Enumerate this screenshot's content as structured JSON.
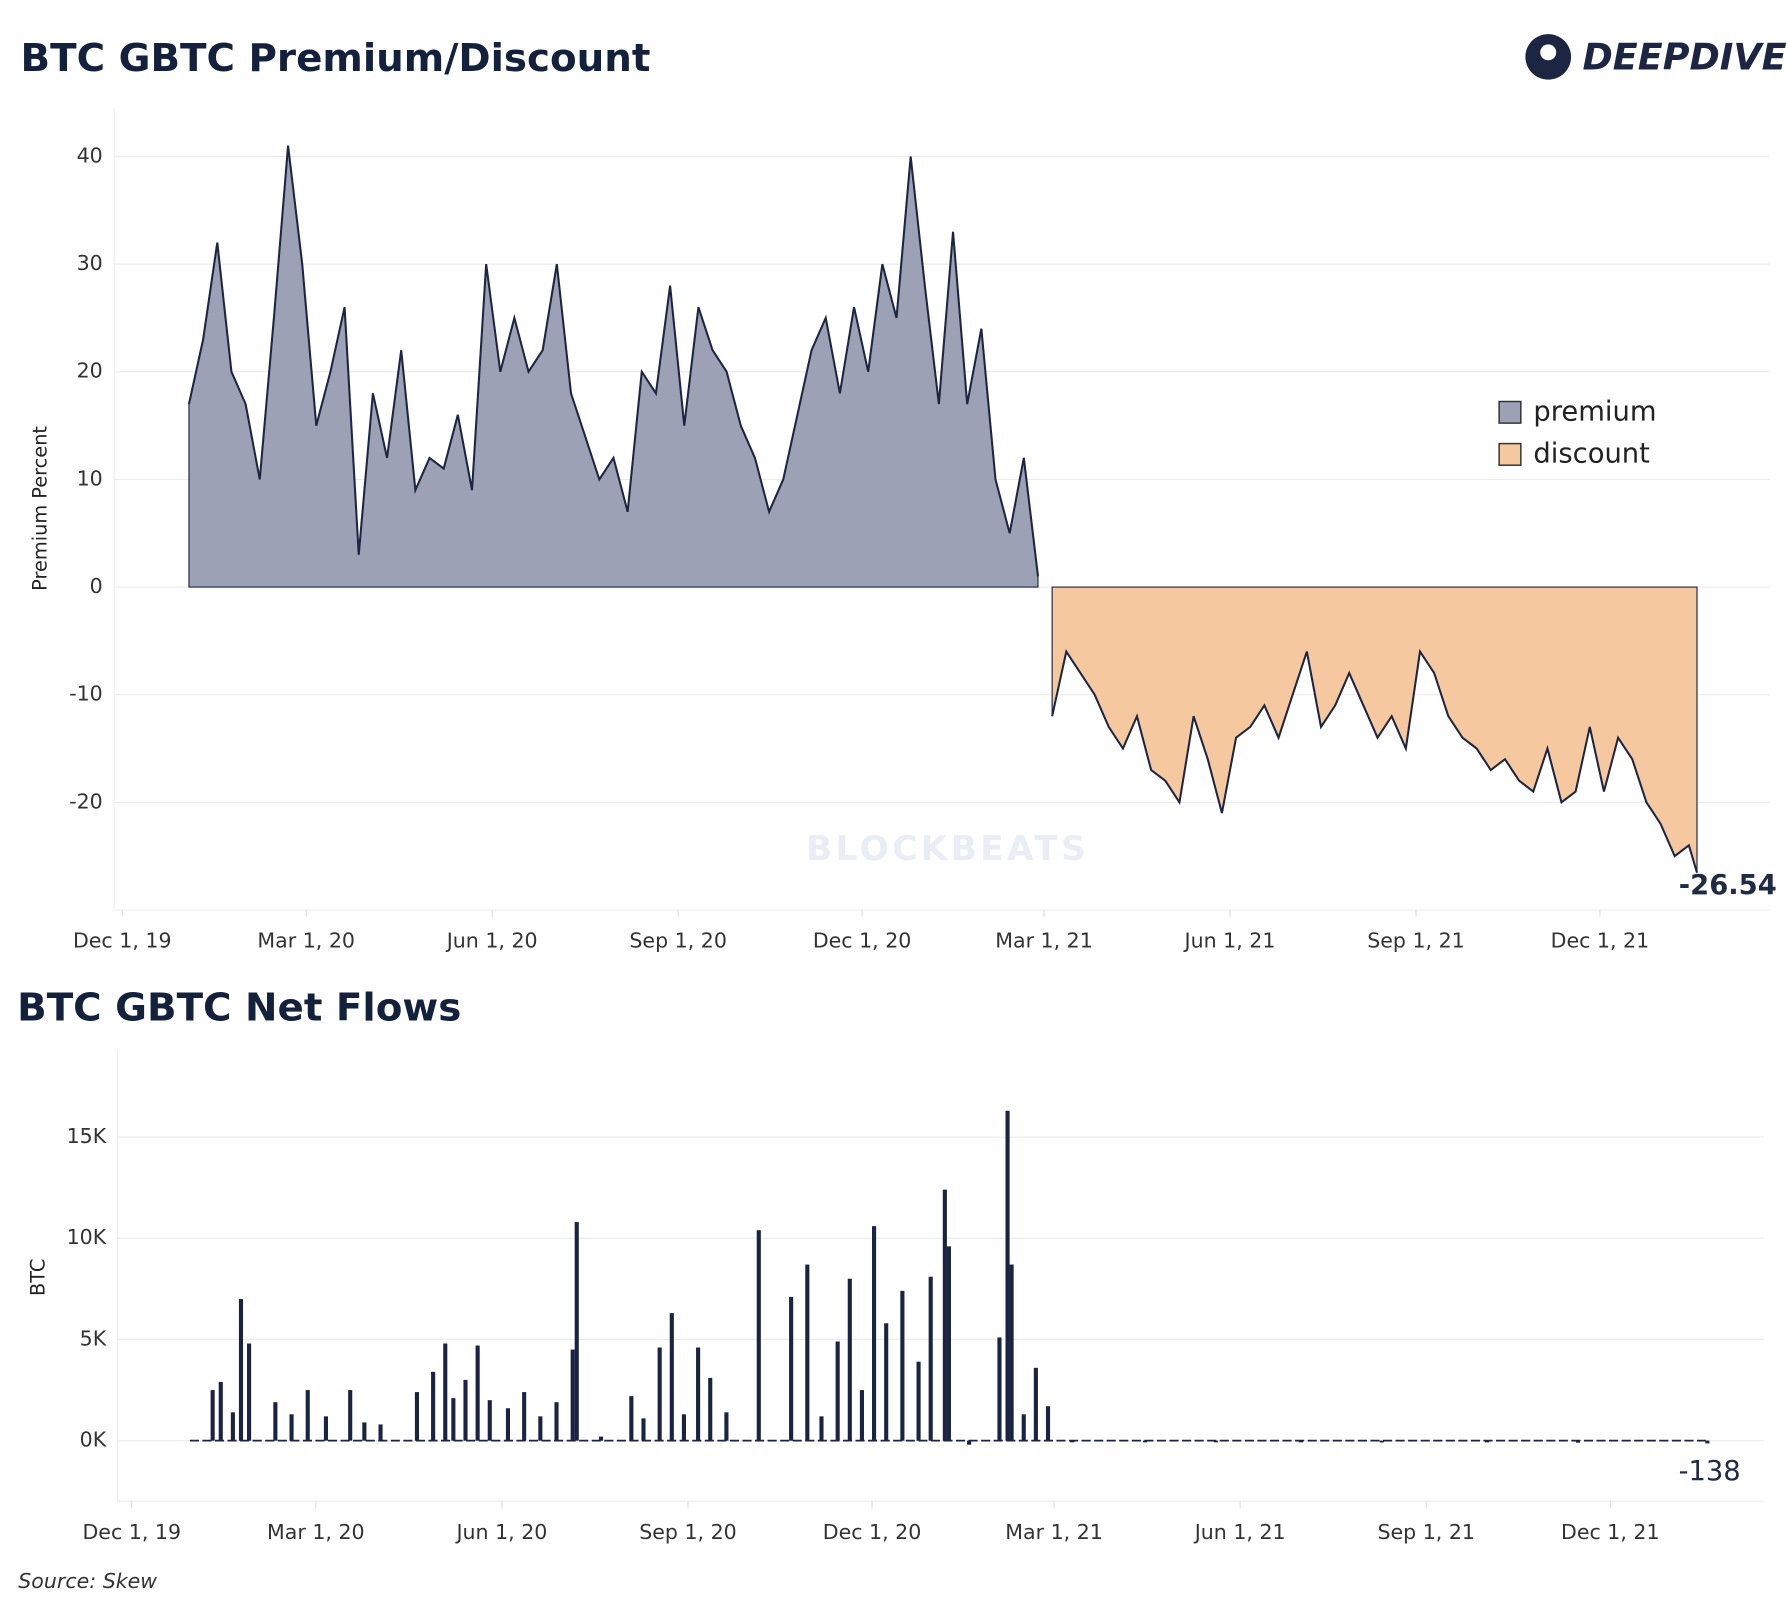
{
  "header": {
    "logo": "DEEPDIVE",
    "watermark": "BLOCKBEATS"
  },
  "chart_data": [
    {
      "type": "area",
      "title": "BTC GBTC Premium/Discount",
      "y_label": "Premium Percent",
      "xlim": [
        "2019-11-27",
        "2022-02-23"
      ],
      "xticks": [
        {
          "value": "2019-12-01",
          "label": "Dec 1, 19"
        },
        {
          "value": "2020-03-01",
          "label": "Mar 1, 20"
        },
        {
          "value": "2020-06-01",
          "label": "Jun 1, 20"
        },
        {
          "value": "2020-09-01",
          "label": "Sep 1, 20"
        },
        {
          "value": "2020-12-01",
          "label": "Dec 1, 20"
        },
        {
          "value": "2021-03-01",
          "label": "Mar 1, 21"
        },
        {
          "value": "2021-06-01",
          "label": "Jun 1, 21"
        },
        {
          "value": "2021-09-01",
          "label": "Sep 1, 21"
        },
        {
          "value": "2021-12-01",
          "label": "Dec 1, 21"
        }
      ],
      "ylim": [
        -30,
        44.5
      ],
      "yticks": [
        -20,
        -10,
        0,
        10,
        20,
        30,
        40
      ],
      "grid": true,
      "legend": "right",
      "series": [
        {
          "name": "premium",
          "color": "#9ca1b5",
          "line_color": "#1c2541",
          "x": [
            "2020-01-03",
            "2020-01-10",
            "2020-01-17",
            "2020-01-24",
            "2020-01-31",
            "2020-02-07",
            "2020-02-14",
            "2020-02-21",
            "2020-02-28",
            "2020-03-06",
            "2020-03-13",
            "2020-03-20",
            "2020-03-27",
            "2020-04-03",
            "2020-04-10",
            "2020-04-17",
            "2020-04-24",
            "2020-05-01",
            "2020-05-08",
            "2020-05-15",
            "2020-05-22",
            "2020-05-29",
            "2020-06-05",
            "2020-06-12",
            "2020-06-19",
            "2020-06-26",
            "2020-07-03",
            "2020-07-10",
            "2020-07-17",
            "2020-07-24",
            "2020-07-31",
            "2020-08-07",
            "2020-08-14",
            "2020-08-21",
            "2020-08-28",
            "2020-09-04",
            "2020-09-11",
            "2020-09-18",
            "2020-09-25",
            "2020-10-02",
            "2020-10-09",
            "2020-10-16",
            "2020-10-23",
            "2020-10-30",
            "2020-11-06",
            "2020-11-13",
            "2020-11-20",
            "2020-11-27",
            "2020-12-04",
            "2020-12-11",
            "2020-12-18",
            "2020-12-25",
            "2021-01-01",
            "2021-01-08",
            "2021-01-15",
            "2021-01-22",
            "2021-01-29",
            "2021-02-05",
            "2021-02-12",
            "2021-02-19",
            "2021-02-26"
          ],
          "values": [
            17,
            23,
            32,
            20,
            17,
            10,
            25,
            41,
            30,
            15,
            20,
            26,
            3,
            18,
            12,
            22,
            9,
            12,
            11,
            16,
            9,
            30,
            20,
            25,
            20,
            22,
            30,
            18,
            14,
            10,
            12,
            7,
            20,
            18,
            28,
            15,
            26,
            22,
            20,
            15,
            12,
            7,
            10,
            16,
            22,
            25,
            18,
            26,
            20,
            30,
            25,
            40,
            28,
            17,
            33,
            17,
            24,
            10,
            5,
            12,
            1
          ]
        },
        {
          "name": "discount",
          "color": "#f6c8a0",
          "line_color": "#1c2541",
          "x": [
            "2021-03-05",
            "2021-03-12",
            "2021-03-19",
            "2021-03-26",
            "2021-04-02",
            "2021-04-09",
            "2021-04-16",
            "2021-04-23",
            "2021-04-30",
            "2021-05-07",
            "2021-05-14",
            "2021-05-21",
            "2021-05-28",
            "2021-06-04",
            "2021-06-11",
            "2021-06-18",
            "2021-06-25",
            "2021-07-02",
            "2021-07-09",
            "2021-07-16",
            "2021-07-23",
            "2021-07-30",
            "2021-08-06",
            "2021-08-13",
            "2021-08-20",
            "2021-08-27",
            "2021-09-03",
            "2021-09-10",
            "2021-09-17",
            "2021-09-24",
            "2021-10-01",
            "2021-10-08",
            "2021-10-15",
            "2021-10-22",
            "2021-10-29",
            "2021-11-05",
            "2021-11-12",
            "2021-11-19",
            "2021-11-26",
            "2021-12-03",
            "2021-12-10",
            "2021-12-17",
            "2021-12-24",
            "2021-12-31",
            "2022-01-07",
            "2022-01-14",
            "2022-01-18"
          ],
          "values": [
            -12,
            -6,
            -8,
            -10,
            -13,
            -15,
            -12,
            -17,
            -18,
            -20,
            -12,
            -16,
            -21,
            -14,
            -13,
            -11,
            -14,
            -10,
            -6,
            -13,
            -11,
            -8,
            -11,
            -14,
            -12,
            -15,
            -6,
            -8,
            -12,
            -14,
            -15,
            -17,
            -16,
            -18,
            -19,
            -15,
            -20,
            -19,
            -13,
            -19,
            -14,
            -16,
            -20,
            -22,
            -25,
            -24,
            -26.54
          ]
        }
      ]
    },
    {
      "type": "bar",
      "title": "BTC GBTC Net Flows",
      "y_label": "BTC",
      "color": "#1a2342",
      "xlim": [
        "2019-11-24",
        "2022-02-15"
      ],
      "xticks": [
        {
          "value": "2019-12-01",
          "label": "Dec 1, 19"
        },
        {
          "value": "2020-03-01",
          "label": "Mar 1, 20"
        },
        {
          "value": "2020-06-01",
          "label": "Jun 1, 20"
        },
        {
          "value": "2020-09-01",
          "label": "Sep 1, 20"
        },
        {
          "value": "2020-12-01",
          "label": "Dec 1, 20"
        },
        {
          "value": "2021-03-01",
          "label": "Mar 1, 21"
        },
        {
          "value": "2021-06-01",
          "label": "Jun 1, 21"
        },
        {
          "value": "2021-09-01",
          "label": "Sep 1, 21"
        },
        {
          "value": "2021-12-01",
          "label": "Dec 1, 21"
        }
      ],
      "ylim": [
        -3000,
        19200
      ],
      "yticks": [
        {
          "value": 0,
          "label": "0K"
        },
        {
          "value": 5000,
          "label": "5K"
        },
        {
          "value": 10000,
          "label": "10K"
        },
        {
          "value": 15000,
          "label": "15K"
        }
      ],
      "grid": true,
      "x": [
        "2020-01-10",
        "2020-01-14",
        "2020-01-20",
        "2020-01-24",
        "2020-01-28",
        "2020-02-10",
        "2020-02-18",
        "2020-02-26",
        "2020-03-06",
        "2020-03-18",
        "2020-03-25",
        "2020-04-02",
        "2020-04-20",
        "2020-04-28",
        "2020-05-04",
        "2020-05-08",
        "2020-05-14",
        "2020-05-20",
        "2020-05-26",
        "2020-06-04",
        "2020-06-12",
        "2020-06-20",
        "2020-06-28",
        "2020-07-06",
        "2020-07-08",
        "2020-07-20",
        "2020-08-04",
        "2020-08-10",
        "2020-08-18",
        "2020-08-24",
        "2020-08-30",
        "2020-09-06",
        "2020-09-12",
        "2020-09-20",
        "2020-10-06",
        "2020-10-22",
        "2020-10-30",
        "2020-11-06",
        "2020-11-14",
        "2020-11-20",
        "2020-11-26",
        "2020-12-02",
        "2020-12-08",
        "2020-12-16",
        "2020-12-24",
        "2020-12-30",
        "2021-01-06",
        "2021-01-08",
        "2021-01-18",
        "2021-02-02",
        "2021-02-06",
        "2021-02-08",
        "2021-02-14",
        "2021-02-20",
        "2021-02-26",
        "2021-03-10",
        "2021-04-15",
        "2021-05-20",
        "2021-07-01",
        "2021-08-10",
        "2021-10-01",
        "2021-11-15",
        "2022-01-18"
      ],
      "values": [
        2500,
        2900,
        1400,
        7000,
        4800,
        1900,
        1300,
        2500,
        1200,
        2500,
        900,
        800,
        2400,
        3400,
        4800,
        2100,
        3000,
        4700,
        2000,
        1600,
        2400,
        1200,
        1900,
        4500,
        10800,
        200,
        2200,
        1100,
        4600,
        6300,
        1300,
        4600,
        3100,
        1400,
        10400,
        7100,
        8700,
        1200,
        4900,
        8000,
        2500,
        10600,
        5800,
        7400,
        3900,
        8100,
        12400,
        9600,
        -200,
        5100,
        16300,
        8700,
        1300,
        3600,
        1700,
        -60,
        -80,
        -50,
        -70,
        -90,
        -60,
        -100,
        -138
      ]
    }
  ],
  "source": "Source: Skew"
}
